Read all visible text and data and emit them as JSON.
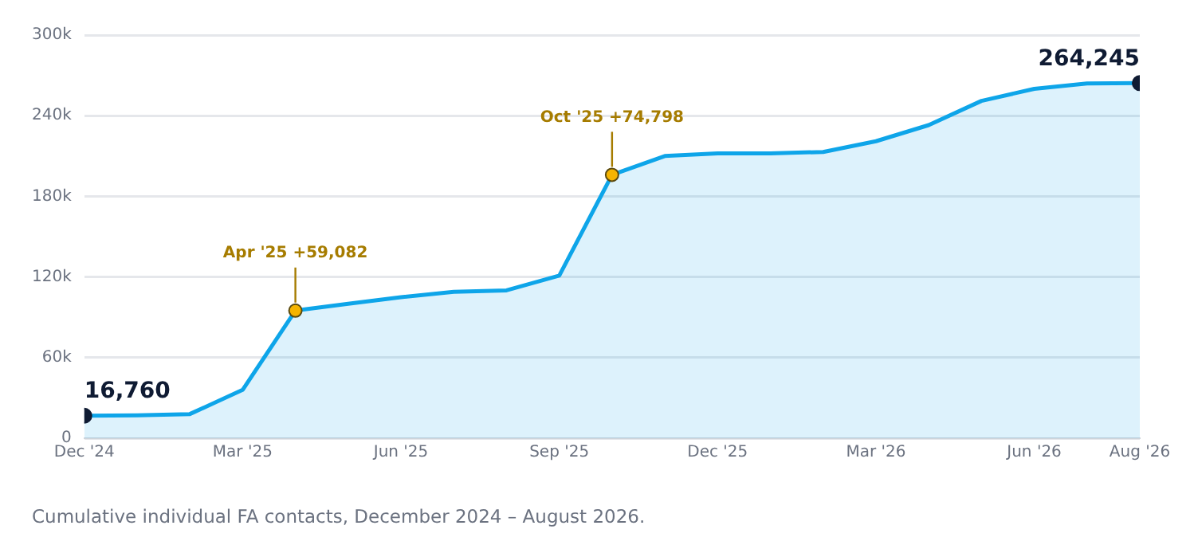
{
  "chart_data": {
    "type": "area",
    "x": [
      "2024-12",
      "2025-01",
      "2025-02",
      "2025-03",
      "2025-04",
      "2025-05",
      "2025-06",
      "2025-07",
      "2025-08",
      "2025-09",
      "2025-10",
      "2025-11",
      "2025-12",
      "2026-01",
      "2026-02",
      "2026-03",
      "2026-04",
      "2026-05",
      "2026-06",
      "2026-07",
      "2026-08"
    ],
    "series": [
      {
        "color": "#0ea5e9",
        "values": [
          16760,
          17000,
          18000,
          36000,
          95000,
          100000,
          105000,
          109000,
          110000,
          121000,
          196000,
          210000,
          212000,
          212000,
          213000,
          221000,
          233000,
          251000,
          260000,
          264000,
          264245
        ],
        "value_labels": [
          "16,760",
          null,
          null,
          null,
          null,
          null,
          null,
          null,
          null,
          null,
          null,
          null,
          null,
          null,
          null,
          null,
          null,
          null,
          null,
          null,
          "264,245"
        ]
      }
    ],
    "xlim": [
      "2024-12",
      "2026-08"
    ],
    "xticks": [
      {
        "value": "2024-12",
        "label": "Dec '24"
      },
      {
        "value": "2025-03",
        "label": "Mar '25"
      },
      {
        "value": "2025-06",
        "label": "Jun '25"
      },
      {
        "value": "2025-09",
        "label": "Sep '25"
      },
      {
        "value": "2025-12",
        "label": "Dec '25"
      },
      {
        "value": "2026-03",
        "label": "Mar '26"
      },
      {
        "value": "2026-06",
        "label": "Jun '26"
      },
      {
        "value": "2026-08",
        "label": "Aug '26"
      }
    ],
    "ylim": [
      0,
      300000
    ],
    "yticks": [
      {
        "value": 0,
        "label": "0"
      },
      {
        "value": 60000,
        "label": "60k"
      },
      {
        "value": 120000,
        "label": "120k"
      },
      {
        "value": 180000,
        "label": "180k"
      },
      {
        "value": 240000,
        "label": "240k"
      },
      {
        "value": 300000,
        "label": "300k"
      }
    ],
    "grid": "y",
    "legend": false,
    "marker": "none",
    "line_style": "solid",
    "annotations": [
      {
        "text": "Apr '25 +59,082",
        "x": "2025-04",
        "y": 95000
      },
      {
        "text": "Oct '25 +74,798",
        "x": "2025-10",
        "y": 196000
      },
      "Cumulative individual FA contacts, December 2024 – August 2026."
    ]
  }
}
